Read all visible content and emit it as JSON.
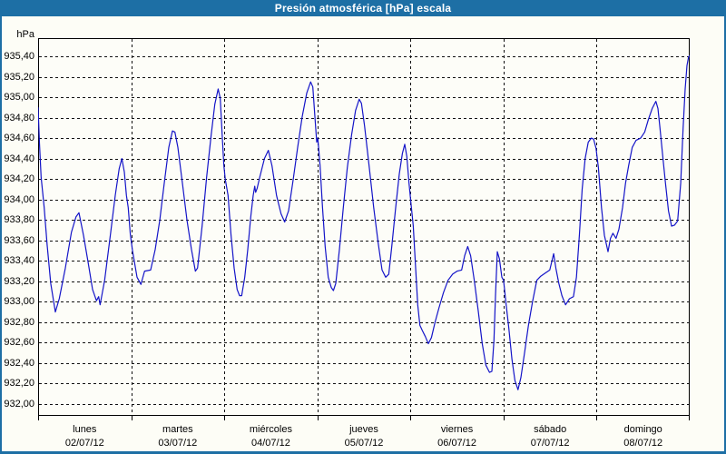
{
  "window": {
    "title": "Presión atmosférica [hPa] escala"
  },
  "colors": {
    "titlebar_bg": "#1d6fa5",
    "frame": "#1d6fa5",
    "plot_bg": "#fdfdf8",
    "grid": "#111111",
    "line": "#1414c8",
    "text": "#000000"
  },
  "chart_data": {
    "type": "line",
    "title": "Presión atmosférica [hPa] escala",
    "y_unit_label": "hPa",
    "ylabel": "",
    "xlabel": "",
    "ylim": [
      932.0,
      935.4
    ],
    "ytick_step": 0.2,
    "grid": "dashed",
    "legend_position": "none",
    "ytick_labels": [
      "935,40",
      "935,20",
      "935,00",
      "934,80",
      "934,60",
      "934,40",
      "934,20",
      "934,00",
      "933,80",
      "933,60",
      "933,40",
      "933,20",
      "933,00",
      "932,80",
      "932,60",
      "932,40",
      "932,20",
      "932,00"
    ],
    "x_days": [
      {
        "name": "lunes",
        "date": "02/07/12"
      },
      {
        "name": "martes",
        "date": "03/07/12"
      },
      {
        "name": "miércoles",
        "date": "04/07/12"
      },
      {
        "name": "jueves",
        "date": "05/07/12"
      },
      {
        "name": "viernes",
        "date": "06/07/12"
      },
      {
        "name": "sábado",
        "date": "07/07/12"
      },
      {
        "name": "domingo",
        "date": "08/07/12"
      }
    ],
    "series": [
      {
        "name": "Presión atmosférica",
        "color": "#1414c8",
        "x_unit": "days_from_start",
        "points": [
          [
            0.0,
            934.9
          ],
          [
            0.015,
            934.55
          ],
          [
            0.032,
            934.22
          ],
          [
            0.065,
            933.92
          ],
          [
            0.097,
            933.56
          ],
          [
            0.136,
            933.18
          ],
          [
            0.185,
            932.9
          ],
          [
            0.227,
            933.03
          ],
          [
            0.292,
            933.33
          ],
          [
            0.358,
            933.68
          ],
          [
            0.407,
            933.83
          ],
          [
            0.439,
            933.87
          ],
          [
            0.487,
            933.65
          ],
          [
            0.536,
            933.39
          ],
          [
            0.585,
            933.12
          ],
          [
            0.627,
            933.01
          ],
          [
            0.65,
            933.05
          ],
          [
            0.666,
            932.97
          ],
          [
            0.715,
            933.21
          ],
          [
            0.78,
            933.68
          ],
          [
            0.829,
            934.04
          ],
          [
            0.871,
            934.3
          ],
          [
            0.9,
            934.4
          ],
          [
            0.926,
            934.27
          ],
          [
            0.949,
            934.04
          ],
          [
            0.968,
            933.92
          ],
          [
            0.991,
            933.66
          ],
          [
            1.014,
            933.5
          ],
          [
            1.063,
            933.24
          ],
          [
            1.105,
            933.17
          ],
          [
            1.144,
            933.3
          ],
          [
            1.209,
            933.31
          ],
          [
            1.258,
            933.51
          ],
          [
            1.307,
            933.8
          ],
          [
            1.355,
            934.16
          ],
          [
            1.404,
            934.51
          ],
          [
            1.443,
            934.67
          ],
          [
            1.469,
            934.66
          ],
          [
            1.501,
            934.51
          ],
          [
            1.55,
            934.16
          ],
          [
            1.599,
            933.8
          ],
          [
            1.648,
            933.51
          ],
          [
            1.69,
            933.3
          ],
          [
            1.713,
            933.33
          ],
          [
            1.762,
            933.74
          ],
          [
            1.81,
            934.22
          ],
          [
            1.859,
            934.63
          ],
          [
            1.898,
            934.93
          ],
          [
            1.934,
            935.08
          ],
          [
            1.957,
            934.99
          ],
          [
            1.979,
            934.6
          ],
          [
            1.996,
            934.33
          ],
          [
            2.01,
            934.2
          ],
          [
            2.041,
            934.04
          ],
          [
            2.073,
            933.65
          ],
          [
            2.106,
            933.33
          ],
          [
            2.138,
            933.12
          ],
          [
            2.164,
            933.06
          ],
          [
            2.187,
            933.06
          ],
          [
            2.22,
            933.24
          ],
          [
            2.252,
            933.51
          ],
          [
            2.284,
            933.83
          ],
          [
            2.311,
            934.04
          ],
          [
            2.327,
            934.13
          ],
          [
            2.337,
            934.07
          ],
          [
            2.353,
            934.11
          ],
          [
            2.382,
            934.22
          ],
          [
            2.431,
            934.4
          ],
          [
            2.473,
            934.48
          ],
          [
            2.512,
            934.33
          ],
          [
            2.561,
            934.04
          ],
          [
            2.61,
            933.86
          ],
          [
            2.649,
            933.78
          ],
          [
            2.691,
            933.89
          ],
          [
            2.74,
            934.19
          ],
          [
            2.788,
            934.51
          ],
          [
            2.837,
            934.81
          ],
          [
            2.886,
            935.04
          ],
          [
            2.928,
            935.15
          ],
          [
            2.951,
            935.1
          ],
          [
            2.974,
            934.81
          ],
          [
            2.993,
            934.56
          ],
          [
            3.005,
            934.6
          ],
          [
            3.029,
            934.33
          ],
          [
            3.055,
            933.92
          ],
          [
            3.084,
            933.54
          ],
          [
            3.117,
            933.24
          ],
          [
            3.149,
            933.14
          ],
          [
            3.172,
            933.11
          ],
          [
            3.198,
            933.18
          ],
          [
            3.237,
            933.51
          ],
          [
            3.279,
            933.92
          ],
          [
            3.322,
            934.31
          ],
          [
            3.367,
            934.63
          ],
          [
            3.41,
            934.87
          ],
          [
            3.449,
            934.98
          ],
          [
            3.474,
            934.94
          ],
          [
            3.507,
            934.72
          ],
          [
            3.556,
            934.33
          ],
          [
            3.605,
            933.92
          ],
          [
            3.654,
            933.57
          ],
          [
            3.695,
            933.31
          ],
          [
            3.734,
            933.24
          ],
          [
            3.767,
            933.27
          ],
          [
            3.799,
            933.54
          ],
          [
            3.841,
            933.92
          ],
          [
            3.88,
            934.25
          ],
          [
            3.913,
            934.45
          ],
          [
            3.939,
            934.54
          ],
          [
            3.961,
            934.42
          ],
          [
            3.985,
            934.16
          ],
          [
            4.007,
            933.95
          ],
          [
            4.03,
            933.74
          ],
          [
            4.056,
            933.33
          ],
          [
            4.078,
            932.97
          ],
          [
            4.102,
            932.77
          ],
          [
            4.127,
            932.72
          ],
          [
            4.16,
            932.66
          ],
          [
            4.192,
            932.59
          ],
          [
            4.225,
            932.65
          ],
          [
            4.264,
            932.8
          ],
          [
            4.306,
            932.94
          ],
          [
            4.355,
            933.09
          ],
          [
            4.404,
            933.21
          ],
          [
            4.453,
            933.27
          ],
          [
            4.501,
            933.3
          ],
          [
            4.55,
            933.31
          ],
          [
            4.582,
            933.45
          ],
          [
            4.615,
            933.54
          ],
          [
            4.647,
            933.45
          ],
          [
            4.686,
            933.21
          ],
          [
            4.728,
            932.91
          ],
          [
            4.771,
            932.59
          ],
          [
            4.81,
            932.38
          ],
          [
            4.849,
            932.31
          ],
          [
            4.875,
            932.32
          ],
          [
            4.897,
            932.62
          ],
          [
            4.914,
            933.06
          ],
          [
            4.933,
            933.49
          ],
          [
            4.956,
            933.42
          ],
          [
            4.982,
            933.24
          ],
          [
            5.0,
            933.21
          ],
          [
            5.025,
            933.0
          ],
          [
            5.057,
            932.74
          ],
          [
            5.09,
            932.44
          ],
          [
            5.122,
            932.23
          ],
          [
            5.155,
            932.14
          ],
          [
            5.187,
            932.26
          ],
          [
            5.226,
            932.5
          ],
          [
            5.268,
            932.77
          ],
          [
            5.311,
            933.0
          ],
          [
            5.357,
            933.21
          ],
          [
            5.399,
            933.25
          ],
          [
            5.448,
            933.28
          ],
          [
            5.497,
            933.31
          ],
          [
            5.539,
            933.47
          ],
          [
            5.562,
            933.33
          ],
          [
            5.594,
            933.18
          ],
          [
            5.627,
            933.06
          ],
          [
            5.666,
            932.97
          ],
          [
            5.708,
            933.03
          ],
          [
            5.751,
            933.05
          ],
          [
            5.783,
            933.24
          ],
          [
            5.815,
            933.66
          ],
          [
            5.845,
            934.1
          ],
          [
            5.877,
            934.4
          ],
          [
            5.91,
            934.56
          ],
          [
            5.942,
            934.6
          ],
          [
            5.968,
            934.59
          ],
          [
            5.994,
            934.5
          ],
          [
            6.019,
            934.31
          ],
          [
            6.052,
            933.92
          ],
          [
            6.084,
            933.65
          ],
          [
            6.123,
            933.49
          ],
          [
            6.149,
            933.62
          ],
          [
            6.175,
            933.67
          ],
          [
            6.208,
            933.62
          ],
          [
            6.24,
            933.71
          ],
          [
            6.279,
            933.92
          ],
          [
            6.311,
            934.16
          ],
          [
            6.344,
            934.33
          ],
          [
            6.383,
            934.51
          ],
          [
            6.425,
            934.58
          ],
          [
            6.474,
            934.6
          ],
          [
            6.516,
            934.66
          ],
          [
            6.555,
            934.78
          ],
          [
            6.597,
            934.89
          ],
          [
            6.636,
            934.96
          ],
          [
            6.659,
            934.89
          ],
          [
            6.678,
            934.72
          ],
          [
            6.708,
            934.45
          ],
          [
            6.74,
            934.16
          ],
          [
            6.772,
            933.89
          ],
          [
            6.805,
            933.74
          ],
          [
            6.837,
            933.75
          ],
          [
            6.87,
            933.79
          ],
          [
            6.903,
            934.16
          ],
          [
            6.929,
            934.69
          ],
          [
            6.951,
            935.08
          ],
          [
            6.971,
            935.31
          ],
          [
            6.987,
            935.39
          ],
          [
            7.0,
            935.41
          ]
        ]
      }
    ]
  }
}
